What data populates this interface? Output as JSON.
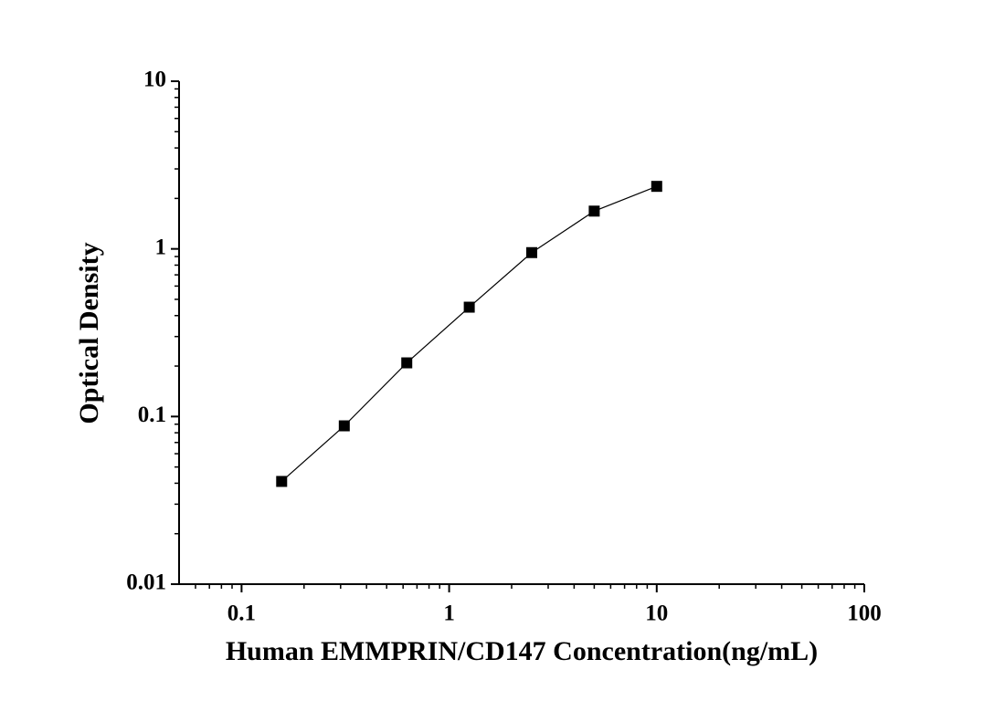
{
  "chart_data": {
    "type": "line",
    "x_label": "Human EMMPRIN/CD147 Concentration(ng/mL)",
    "y_label": "Optical Density",
    "x": [
      0.156,
      0.3125,
      0.625,
      1.25,
      2.5,
      5,
      10
    ],
    "series": [
      {
        "color": "#000000",
        "values": [
          0.041,
          0.088,
          0.209,
          0.449,
          0.95,
          1.68,
          2.36
        ]
      }
    ],
    "xlim": [
      0.05,
      100
    ],
    "xticks": [
      0.1,
      1,
      10,
      100
    ],
    "ylim": [
      0.01,
      10
    ],
    "yticks": [
      0.01,
      0.1,
      1,
      10
    ],
    "xscale": "log",
    "yscale": "log",
    "markers": "square"
  }
}
